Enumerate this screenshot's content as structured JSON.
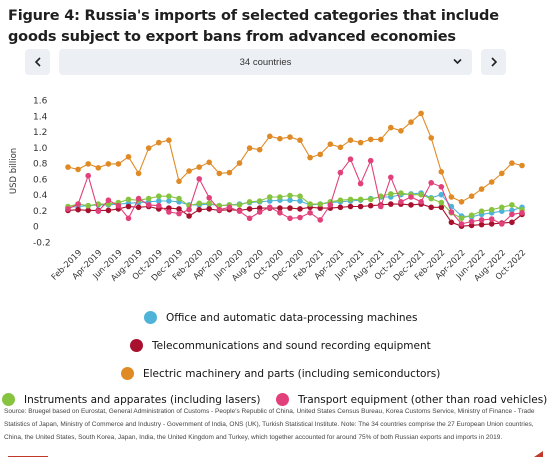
{
  "title": "Figure 4: Russia's imports of selected categories that include goods subject to export bans from advanced economies",
  "controls": {
    "prev_icon": "chevron-left-icon",
    "next_icon": "chevron-right-icon",
    "selector_value": "34 countries",
    "selector_icon": "chevron-down-icon"
  },
  "chart_data": {
    "type": "line",
    "ylabel": "USD billion",
    "ylim": [
      -0.2,
      1.6
    ],
    "yticks": [
      "1.6",
      "1.4",
      "1.2",
      "1.0",
      "0.8",
      "0.6",
      "0.4",
      "0.2",
      "0",
      "-0.2"
    ],
    "x_tick_labels": [
      "Feb-2019",
      "Apr-2019",
      "Jun-2019",
      "Aug-2019",
      "Oct-2019",
      "Dec-2019",
      "Feb-2020",
      "Apr-2020",
      "Jun-2020",
      "Aug-2020",
      "Oct-2020",
      "Dec-2020",
      "Feb-2021",
      "Apr-2021",
      "Jun-2021",
      "Aug-2021",
      "Oct-2021",
      "Dec-2021",
      "Feb-2022",
      "Apr-2022",
      "Jun-2022",
      "Aug-2022",
      "Oct-2022"
    ],
    "x": [
      "Jan-2019",
      "Feb-2019",
      "Mar-2019",
      "Apr-2019",
      "May-2019",
      "Jun-2019",
      "Jul-2019",
      "Aug-2019",
      "Sep-2019",
      "Oct-2019",
      "Nov-2019",
      "Dec-2019",
      "Jan-2020",
      "Feb-2020",
      "Mar-2020",
      "Apr-2020",
      "May-2020",
      "Jun-2020",
      "Jul-2020",
      "Aug-2020",
      "Sep-2020",
      "Oct-2020",
      "Nov-2020",
      "Dec-2020",
      "Jan-2021",
      "Feb-2021",
      "Mar-2021",
      "Apr-2021",
      "May-2021",
      "Jun-2021",
      "Jul-2021",
      "Aug-2021",
      "Sep-2021",
      "Oct-2021",
      "Nov-2021",
      "Dec-2021",
      "Jan-2022",
      "Feb-2022",
      "Mar-2022",
      "Apr-2022",
      "May-2022",
      "Jun-2022",
      "Jul-2022",
      "Aug-2022",
      "Sep-2022",
      "Oct-2022"
    ],
    "grid": false,
    "legend_position": "bottom",
    "series": [
      {
        "name": "Office and automatic data-processing machines",
        "color": "#4fb3d9",
        "values": [
          0.24,
          0.25,
          0.26,
          0.27,
          0.27,
          0.28,
          0.29,
          0.3,
          0.31,
          0.32,
          0.32,
          0.31,
          0.27,
          0.27,
          0.28,
          0.26,
          0.27,
          0.28,
          0.3,
          0.31,
          0.32,
          0.33,
          0.33,
          0.32,
          0.27,
          0.28,
          0.3,
          0.31,
          0.32,
          0.33,
          0.35,
          0.37,
          0.37,
          0.4,
          0.41,
          0.42,
          0.36,
          0.4,
          0.25,
          0.13,
          0.12,
          0.15,
          0.17,
          0.19,
          0.2,
          0.24
        ]
      },
      {
        "name": "Telecommunications and sound recording equipment",
        "color": "#a8102e",
        "values": [
          0.2,
          0.21,
          0.2,
          0.2,
          0.2,
          0.22,
          0.25,
          0.24,
          0.25,
          0.22,
          0.23,
          0.22,
          0.13,
          0.21,
          0.22,
          0.2,
          0.21,
          0.2,
          0.22,
          0.23,
          0.23,
          0.23,
          0.23,
          0.22,
          0.24,
          0.23,
          0.23,
          0.24,
          0.25,
          0.25,
          0.26,
          0.27,
          0.28,
          0.28,
          0.27,
          0.28,
          0.24,
          0.24,
          0.05,
          0.0,
          0.01,
          0.02,
          0.03,
          0.04,
          0.05,
          0.15
        ]
      },
      {
        "name": "Electric machinery and parts (including semiconductors)",
        "color": "#e08a25",
        "values": [
          0.75,
          0.72,
          0.79,
          0.74,
          0.79,
          0.79,
          0.88,
          0.67,
          0.99,
          1.06,
          1.09,
          0.57,
          0.7,
          0.75,
          0.81,
          0.67,
          0.68,
          0.8,
          0.99,
          0.97,
          1.14,
          1.11,
          1.13,
          1.09,
          0.87,
          0.91,
          1.04,
          1.0,
          1.09,
          1.06,
          1.1,
          1.1,
          1.25,
          1.21,
          1.32,
          1.43,
          1.12,
          0.69,
          0.37,
          0.31,
          0.38,
          0.47,
          0.56,
          0.67,
          0.8,
          0.77
        ]
      },
      {
        "name": "Instruments and apparates (including lasers)",
        "color": "#86c440",
        "values": [
          0.25,
          0.28,
          0.26,
          0.28,
          0.28,
          0.3,
          0.34,
          0.33,
          0.35,
          0.38,
          0.38,
          0.35,
          0.26,
          0.29,
          0.29,
          0.26,
          0.27,
          0.27,
          0.31,
          0.32,
          0.37,
          0.37,
          0.39,
          0.38,
          0.28,
          0.28,
          0.31,
          0.33,
          0.34,
          0.34,
          0.34,
          0.38,
          0.41,
          0.42,
          0.4,
          0.4,
          0.35,
          0.3,
          0.17,
          0.1,
          0.14,
          0.19,
          0.21,
          0.24,
          0.27,
          0.21
        ]
      },
      {
        "name": "Transport equipment (other than road vehicles)",
        "color": "#e2407a",
        "values": [
          0.22,
          0.28,
          0.64,
          0.19,
          0.33,
          0.26,
          0.1,
          0.35,
          0.27,
          0.26,
          0.18,
          0.16,
          0.21,
          0.6,
          0.36,
          0.21,
          0.24,
          0.19,
          0.1,
          0.18,
          0.24,
          0.17,
          0.1,
          0.11,
          0.17,
          0.08,
          0.27,
          0.68,
          0.85,
          0.54,
          0.83,
          0.25,
          0.62,
          0.31,
          0.37,
          0.31,
          0.55,
          0.5,
          0.18,
          0.03,
          0.06,
          0.08,
          0.09,
          0.03,
          0.15,
          0.17
        ]
      }
    ]
  },
  "source_text": "Source: Bruegel based on Eurostat, General Administration of Customs - People's Republic of China, United States Census Bureau, Korea Customs Service, Ministry of Finance - Trade Statistics of Japan, Ministry of Commerce and Industry - Government of India, ONS (UK), Turkish Statistical Institute. Note: The 34 countries comprise the 27 European Union countries, China, the United States, South Korea, Japan, India, the United Kingdom and Turkey, which together accounted for around 75% of both Russian exports and imports in 2019."
}
